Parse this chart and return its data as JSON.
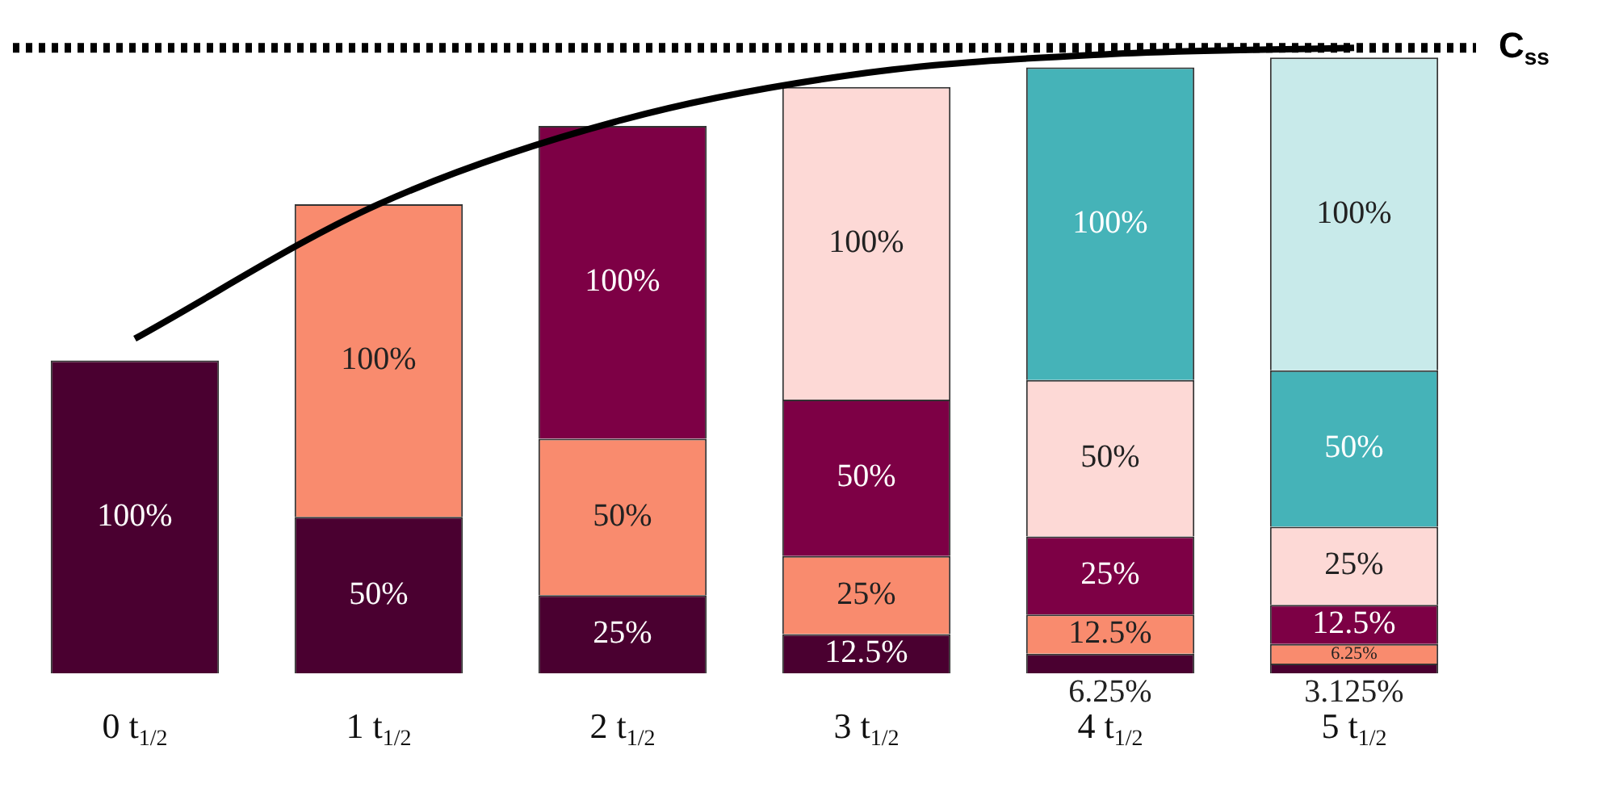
{
  "chart_data": {
    "type": "bar",
    "stacked": true,
    "categories": [
      "0 t$_{1/2}$",
      "1 t$_{1/2}$",
      "2 t$_{1/2}$",
      "3 t$_{1/2}$",
      "4 t$_{1/2}$",
      "5 t$_{1/2}$"
    ],
    "series": [
      {
        "color": "#4a0030",
        "values": [
          100,
          50,
          25,
          12.5,
          6.25,
          3.125
        ],
        "value_labels": [
          "100%",
          "50%",
          "25%",
          "12.5%",
          "6.25%",
          "3.125%"
        ]
      },
      {
        "color": "#f98b6e",
        "values": [
          null,
          100,
          50,
          25,
          12.5,
          6.25
        ],
        "value_labels": [
          null,
          "100%",
          "50%",
          "25%",
          "12.5%",
          "6.25%"
        ]
      },
      {
        "color": "#7d0045",
        "values": [
          null,
          null,
          100,
          50,
          25,
          12.5
        ],
        "value_labels": [
          null,
          null,
          "100%",
          "50%",
          "25%",
          "12.5%"
        ]
      },
      {
        "color": "#fdd9d6",
        "values": [
          null,
          null,
          null,
          100,
          50,
          25
        ],
        "value_labels": [
          null,
          null,
          null,
          "100%",
          "50%",
          "25%"
        ]
      },
      {
        "color": "#45b3b8",
        "values": [
          null,
          null,
          null,
          null,
          100,
          50
        ],
        "value_labels": [
          null,
          null,
          null,
          null,
          "100%",
          "50%"
        ]
      },
      {
        "color": "#c8eaea",
        "values": [
          null,
          null,
          null,
          null,
          null,
          100
        ],
        "value_labels": [
          null,
          null,
          null,
          null,
          null,
          "100%"
        ]
      },
      {
        "type": "line",
        "color": "#000000",
        "marker": "none",
        "values": [
          107,
          150,
          177,
          192,
          198,
          200
        ]
      }
    ],
    "ref_lines": [
      {
        "axis": "y",
        "value": 200,
        "label": "C$_{ss}$",
        "color": "#000000",
        "line_style": "dotted"
      }
    ],
    "grid": false,
    "legend": false
  }
}
